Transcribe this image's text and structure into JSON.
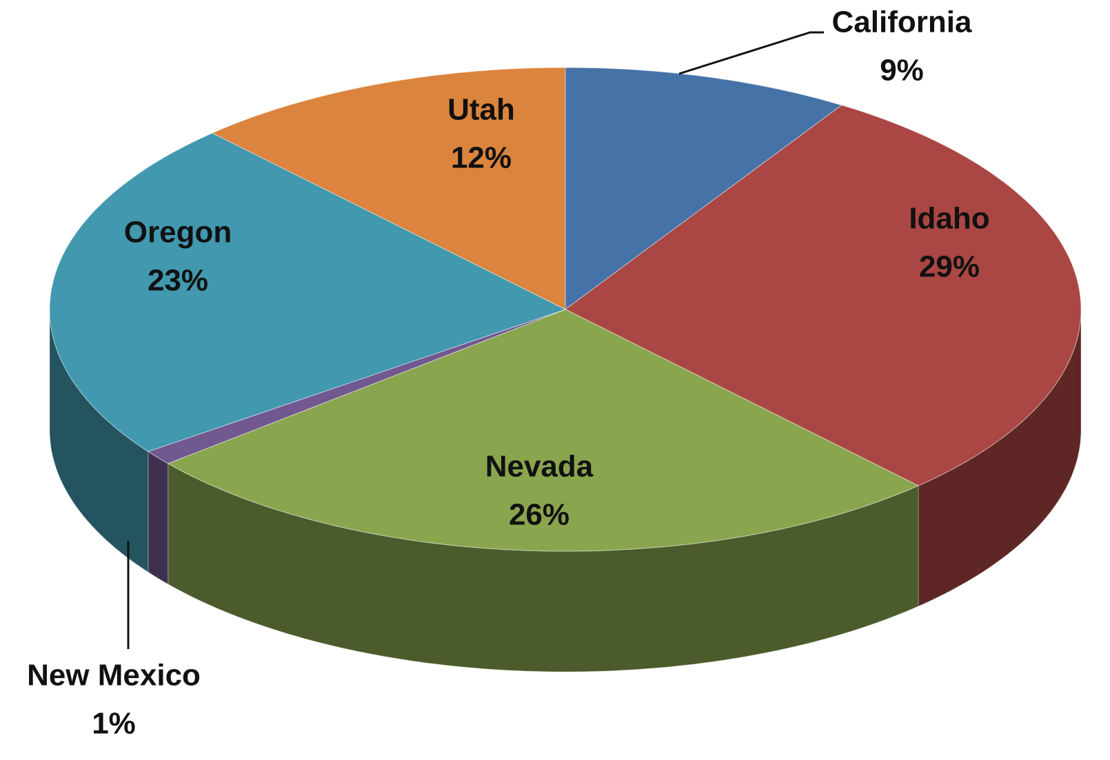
{
  "chart_data": {
    "type": "pie",
    "categories": [
      "California",
      "Idaho",
      "Nevada",
      "New Mexico",
      "Oregon",
      "Utah"
    ],
    "values": [
      9,
      29,
      26,
      1,
      23,
      12
    ],
    "value_labels": [
      "9%",
      "29%",
      "26%",
      "1%",
      "23%",
      "12%"
    ],
    "colors": [
      "#4572a7",
      "#aa4643",
      "#89a54e",
      "#71588f",
      "#4198af",
      "#db843d"
    ]
  }
}
